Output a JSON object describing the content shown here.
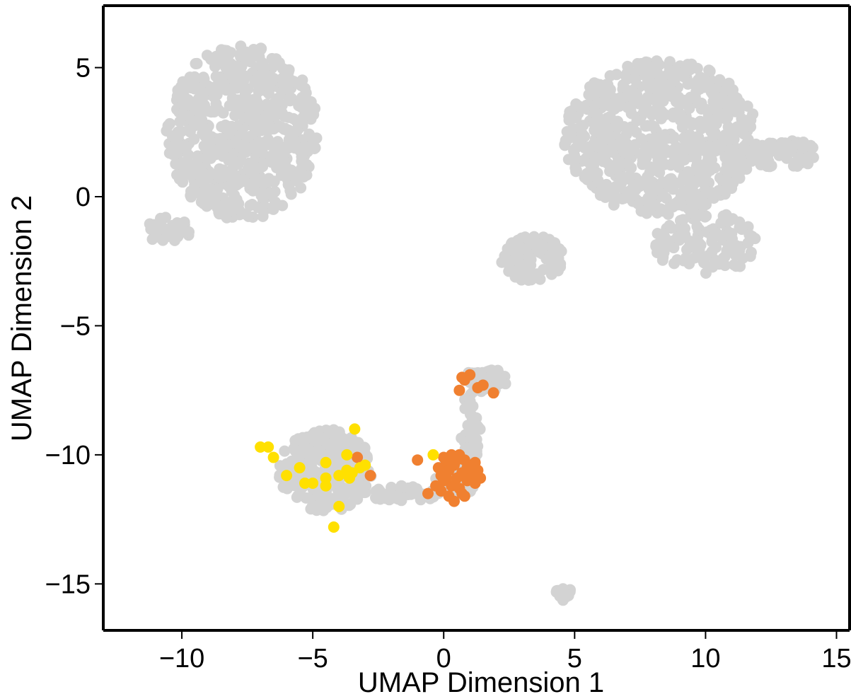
{
  "chart_data": {
    "type": "scatter",
    "title": "",
    "xlabel": "UMAP Dimension 1",
    "ylabel": "UMAP Dimension 2",
    "xlim": [
      -13.0,
      15.5
    ],
    "ylim": [
      -16.8,
      7.4
    ],
    "xticks": [
      -10,
      -5,
      0,
      5,
      10,
      15
    ],
    "xtick_labels": [
      "−10",
      "−5",
      "0",
      "5",
      "10",
      "15"
    ],
    "yticks": [
      5,
      0,
      -5,
      -10,
      -15
    ],
    "ytick_labels": [
      "5",
      "0",
      "−5",
      "−10",
      "−15"
    ],
    "grid": false,
    "legend": "none",
    "colors": {
      "background_points": "#d3d3d3",
      "orange": "#f08030",
      "yellow": "#ffe000",
      "axis": "#000000"
    },
    "background_regions": [
      {
        "center": [
          -7.7,
          2.5
        ],
        "spread": [
          2.9,
          3.4
        ],
        "count": 650
      },
      {
        "center": [
          -10.5,
          -1.3
        ],
        "spread": [
          0.9,
          0.5
        ],
        "count": 40
      },
      {
        "center": [
          8.3,
          2.3
        ],
        "spread": [
          3.7,
          3.0
        ],
        "count": 700
      },
      {
        "center": [
          13.0,
          1.7
        ],
        "spread": [
          1.4,
          0.6
        ],
        "count": 60
      },
      {
        "center": [
          10.0,
          -1.8
        ],
        "spread": [
          2.0,
          1.2
        ],
        "count": 120
      },
      {
        "center": [
          3.4,
          -2.4
        ],
        "spread": [
          1.2,
          0.9
        ],
        "count": 90
      },
      {
        "center": [
          -4.5,
          -10.6
        ],
        "spread": [
          1.8,
          1.6
        ],
        "count": 260
      },
      {
        "center": [
          -1.5,
          -11.5
        ],
        "spread": [
          1.4,
          0.3
        ],
        "count": 50
      },
      {
        "center": [
          0.5,
          -10.9
        ],
        "spread": [
          0.8,
          0.7
        ],
        "count": 100
      },
      {
        "center": [
          1.0,
          -9.0
        ],
        "spread": [
          0.4,
          1.6
        ],
        "count": 45
      },
      {
        "center": [
          1.6,
          -7.1
        ],
        "spread": [
          0.8,
          0.5
        ],
        "count": 45
      },
      {
        "center": [
          4.6,
          -15.4
        ],
        "spread": [
          0.35,
          0.25
        ],
        "count": 18
      }
    ],
    "series": [
      {
        "color": "orange",
        "points": [
          [
            0.8,
            -7.1
          ],
          [
            1.0,
            -6.9
          ],
          [
            1.3,
            -7.4
          ],
          [
            1.5,
            -7.3
          ],
          [
            1.9,
            -7.6
          ],
          [
            0.6,
            -7.5
          ],
          [
            0.7,
            -7.0
          ],
          [
            -3.3,
            -10.1
          ],
          [
            -2.8,
            -10.8
          ],
          [
            -1.0,
            -10.2
          ],
          [
            -0.6,
            -11.5
          ],
          [
            -0.2,
            -10.5
          ],
          [
            -0.1,
            -10.8
          ],
          [
            0.0,
            -11.0
          ],
          [
            0.1,
            -10.3
          ],
          [
            0.2,
            -10.6
          ],
          [
            0.3,
            -11.2
          ],
          [
            0.4,
            -10.4
          ],
          [
            0.5,
            -10.9
          ],
          [
            0.6,
            -11.3
          ],
          [
            0.7,
            -10.7
          ],
          [
            0.8,
            -10.2
          ],
          [
            0.9,
            -11.0
          ],
          [
            1.0,
            -10.5
          ],
          [
            1.1,
            -10.8
          ],
          [
            1.2,
            -10.3
          ],
          [
            1.3,
            -10.6
          ],
          [
            0.2,
            -11.6
          ],
          [
            0.4,
            -11.8
          ],
          [
            0.6,
            -10.0
          ],
          [
            -0.3,
            -11.2
          ],
          [
            1.4,
            -10.9
          ],
          [
            0.0,
            -10.1
          ],
          [
            0.8,
            -11.6
          ],
          [
            0.3,
            -10.0
          ],
          [
            -0.1,
            -11.4
          ],
          [
            1.2,
            -11.1
          ],
          [
            0.5,
            -10.2
          ],
          [
            0.9,
            -10.5
          ],
          [
            0.1,
            -10.9
          ],
          [
            0.7,
            -11.5
          ]
        ]
      },
      {
        "color": "yellow",
        "points": [
          [
            -7.0,
            -9.7
          ],
          [
            -6.7,
            -9.7
          ],
          [
            -6.5,
            -10.1
          ],
          [
            -6.0,
            -10.8
          ],
          [
            -5.5,
            -10.5
          ],
          [
            -5.3,
            -11.1
          ],
          [
            -5.0,
            -11.1
          ],
          [
            -4.5,
            -10.3
          ],
          [
            -4.5,
            -10.9
          ],
          [
            -4.5,
            -11.2
          ],
          [
            -4.2,
            -12.8
          ],
          [
            -4.0,
            -12.0
          ],
          [
            -4.0,
            -10.8
          ],
          [
            -3.7,
            -10.6
          ],
          [
            -3.7,
            -10.0
          ],
          [
            -3.6,
            -10.9
          ],
          [
            -3.5,
            -10.7
          ],
          [
            -3.4,
            -9.0
          ],
          [
            -3.2,
            -10.5
          ],
          [
            -3.0,
            -10.4
          ],
          [
            -0.4,
            -10.0
          ]
        ]
      }
    ]
  }
}
